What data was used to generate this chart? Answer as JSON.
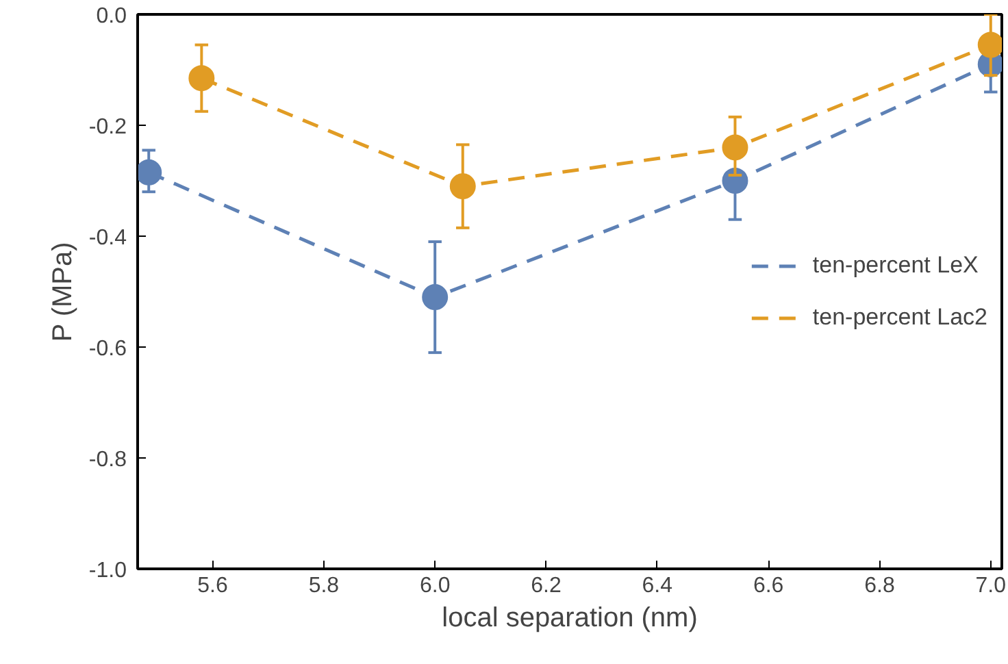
{
  "chart_data": {
    "type": "line",
    "xlabel": "local separation (nm)",
    "ylabel": "P (MPa)",
    "xlim": [
      5.465,
      7.02
    ],
    "ylim": [
      -1.0,
      0.0
    ],
    "xticks": [
      5.6,
      5.8,
      {
        "value": 6.0,
        "label": "6.0"
      },
      6.2,
      6.4,
      6.6,
      6.8,
      {
        "value": 7.0,
        "label": "7.0"
      }
    ],
    "yticks": [
      {
        "value": -1.0,
        "label": "-1.0"
      },
      {
        "value": -0.8,
        "label": "-0.8"
      },
      {
        "value": -0.6,
        "label": "-0.6"
      },
      {
        "value": -0.4,
        "label": "-0.4"
      },
      {
        "value": -0.2,
        "label": "-0.2"
      },
      {
        "value": 0.0,
        "label": "0.0"
      }
    ],
    "marker": "circle",
    "line_style": "dashed",
    "grid": false,
    "legend": "right",
    "series": [
      {
        "name": "ten-percent LeX",
        "color": "#5e81b5",
        "x": [
          5.485,
          6.0,
          6.54,
          7.0
        ],
        "values": [
          -0.285,
          -0.51,
          -0.3,
          -0.09
        ],
        "errors": [
          [
            -0.32,
            -0.245
          ],
          [
            -0.61,
            -0.41
          ],
          [
            -0.37,
            -0.3
          ],
          [
            -0.14,
            -0.09
          ]
        ]
      },
      {
        "name": "ten-percent Lac2",
        "color": "#e19c24",
        "x": [
          5.58,
          6.05,
          6.54,
          7.0
        ],
        "values": [
          -0.115,
          -0.31,
          -0.24,
          -0.055
        ],
        "errors": [
          [
            -0.175,
            -0.055
          ],
          [
            -0.385,
            -0.235
          ],
          [
            -0.29,
            -0.185
          ],
          [
            -0.11,
            0.0
          ]
        ]
      }
    ]
  }
}
